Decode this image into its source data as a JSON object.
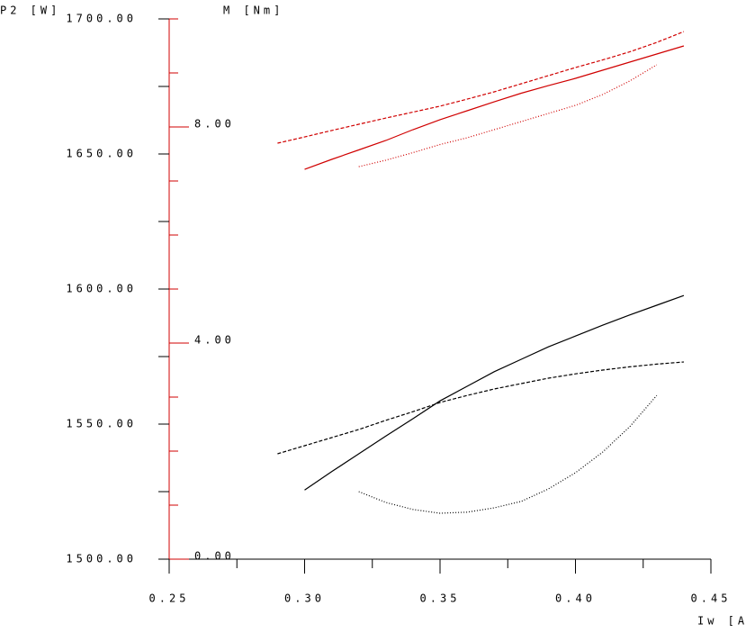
{
  "chart_data": {
    "type": "line",
    "x_label": "Iw [A]",
    "y_label": "P2 [W]",
    "y2_label": "M [Nm]",
    "x": [
      0.29,
      0.3,
      0.31,
      0.32,
      0.33,
      0.34,
      0.35,
      0.36,
      0.37,
      0.38,
      0.39,
      0.4,
      0.41,
      0.42,
      0.43,
      0.44
    ],
    "xlim": [
      0.25,
      0.45
    ],
    "xticks": [
      {
        "value": 0.25,
        "label": "0.25"
      },
      {
        "value": 0.3,
        "label": "0.30"
      },
      {
        "value": 0.35,
        "label": "0.35"
      },
      {
        "value": 0.4,
        "label": "0.40"
      },
      {
        "value": 0.45,
        "label": "0.45"
      }
    ],
    "ylim": [
      1500,
      1700
    ],
    "yticks": [
      {
        "value": 1500,
        "label": "1500.00"
      },
      {
        "value": 1550,
        "label": "1550.00"
      },
      {
        "value": 1600,
        "label": "1600.00"
      },
      {
        "value": 1650,
        "label": "1650.00"
      },
      {
        "value": 1700,
        "label": "1700.00"
      }
    ],
    "y2lim": [
      0,
      10
    ],
    "y2ticks": [
      {
        "value": 0,
        "label": "0.00"
      },
      {
        "value": 4,
        "label": "4.00"
      },
      {
        "value": 8,
        "label": "8.00"
      }
    ],
    "series": [
      {
        "color": "#d00000",
        "dash": "dashed",
        "values": [
          1654,
          1656.3,
          1658.7,
          1661.0,
          1663.3,
          1665.5,
          1667.7,
          1670.3,
          1673,
          1676,
          1679,
          1682,
          1684.8,
          1687.8,
          1691.3,
          1695.3
        ]
      },
      {
        "color": "#d00000",
        "dash": "solid",
        "values": [
          null,
          1644.3,
          1648,
          1651.5,
          1655,
          1659,
          1662.7,
          1666,
          1669.3,
          1672.5,
          1675.3,
          1678,
          1681,
          1684,
          1687,
          1690
        ]
      },
      {
        "color": "#d00000",
        "dash": "dotted",
        "values": [
          null,
          null,
          null,
          1645.3,
          1647.7,
          1650.5,
          1653.5,
          1656,
          1659,
          1662,
          1665,
          1668,
          1672,
          1677,
          1683,
          null
        ]
      },
      {
        "color": "#000000",
        "dash": "solid",
        "axis": "y2",
        "values": [
          null,
          1.28,
          1.62,
          1.95,
          2.28,
          2.6,
          2.93,
          3.2,
          3.47,
          3.7,
          3.93,
          4.13,
          4.33,
          4.52,
          4.7,
          4.88
        ]
      },
      {
        "color": "#000000",
        "dash": "dashed",
        "axis": "y2",
        "values": [
          1.95,
          2.1,
          2.25,
          2.4,
          2.57,
          2.73,
          2.9,
          3.03,
          3.15,
          3.25,
          3.35,
          3.43,
          3.5,
          3.56,
          3.61,
          3.65
        ]
      },
      {
        "color": "#000000",
        "dash": "dotted",
        "axis": "y2",
        "values": [
          null,
          null,
          null,
          1.25,
          1.05,
          0.92,
          0.85,
          0.87,
          0.95,
          1.07,
          1.3,
          1.6,
          1.98,
          2.45,
          3.03,
          null
        ]
      }
    ]
  }
}
